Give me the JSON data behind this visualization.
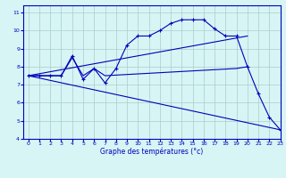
{
  "line1_x": [
    0,
    1,
    2,
    3,
    4,
    5,
    6,
    7,
    8,
    9,
    10,
    11,
    12,
    13,
    14,
    15,
    16,
    17,
    18,
    19,
    20,
    21,
    22,
    23
  ],
  "line1_y": [
    7.5,
    7.5,
    7.5,
    7.5,
    8.6,
    7.3,
    7.9,
    7.1,
    7.9,
    9.2,
    9.7,
    9.7,
    10.0,
    10.4,
    10.6,
    10.6,
    10.6,
    10.1,
    9.7,
    9.7,
    8.0,
    6.5,
    5.2,
    4.5
  ],
  "line2_x": [
    0,
    20
  ],
  "line2_y": [
    7.5,
    9.7
  ],
  "line3_x": [
    0,
    23
  ],
  "line3_y": [
    7.5,
    4.5
  ],
  "line4_x": [
    0,
    3,
    4,
    5,
    6,
    7,
    19,
    20
  ],
  "line4_y": [
    7.5,
    7.5,
    8.5,
    7.5,
    7.9,
    7.5,
    7.9,
    8.0
  ],
  "color": "#0000bb",
  "bg_color": "#d8f5f5",
  "grid_color": "#aacccc",
  "xlabel": "Graphe des températures (°c)",
  "xlim": [
    -0.5,
    23
  ],
  "ylim": [
    4,
    11.4
  ],
  "xticks": [
    0,
    1,
    2,
    3,
    4,
    5,
    6,
    7,
    8,
    9,
    10,
    11,
    12,
    13,
    14,
    15,
    16,
    17,
    18,
    19,
    20,
    21,
    22,
    23
  ],
  "yticks": [
    4,
    5,
    6,
    7,
    8,
    9,
    10,
    11
  ]
}
